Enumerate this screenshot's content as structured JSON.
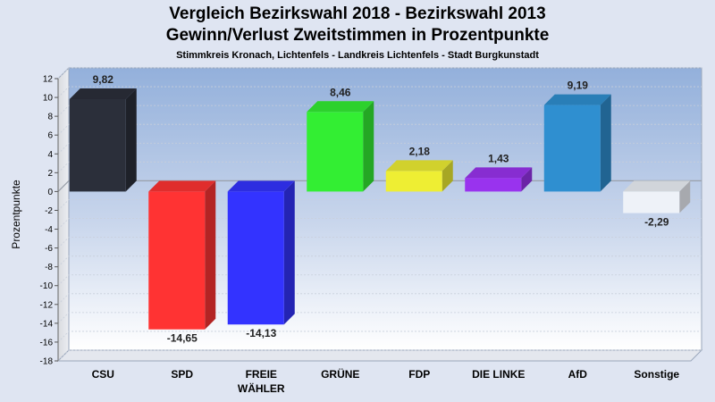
{
  "chart_data": {
    "type": "bar",
    "title": "Vergleich Bezirkswahl 2018 - Bezirkswahl 2013",
    "subtitle": "Gewinn/Verlust Zweitstimmen in Prozentpunkte",
    "subsubtitle": "Stimmkreis Kronach, Lichtenfels - Landkreis Lichtenfels - Stadt Burgkunstadt",
    "ylabel": "Prozentpunkte",
    "xlabel": "",
    "ylim": [
      -18,
      12
    ],
    "yticks": [
      "12",
      "10",
      "8",
      "6",
      "4",
      "2",
      "0",
      "-2",
      "-4",
      "-6",
      "-8",
      "-10",
      "-12",
      "-14",
      "-16",
      "-18"
    ],
    "categories": [
      {
        "line1": "CSU",
        "line2": ""
      },
      {
        "line1": "SPD",
        "line2": ""
      },
      {
        "line1": "FREIE",
        "line2": "WÄHLER"
      },
      {
        "line1": "GRÜNE",
        "line2": ""
      },
      {
        "line1": "FDP",
        "line2": ""
      },
      {
        "line1": "DIE LINKE",
        "line2": ""
      },
      {
        "line1": "AfD",
        "line2": ""
      },
      {
        "line1": "Sonstige",
        "line2": ""
      }
    ],
    "values": [
      9.82,
      -14.65,
      -14.13,
      8.46,
      2.18,
      1.43,
      9.19,
      -2.29
    ],
    "value_labels": [
      "9,82",
      "-14,65",
      "-14,13",
      "8,46",
      "2,18",
      "1,43",
      "9,19",
      "-2,29"
    ],
    "colors": [
      "#2b2f3a",
      "#ff3333",
      "#3333ff",
      "#33ee33",
      "#eeee33",
      "#9933ee",
      "#2f8fd0",
      "#eef2f8"
    ],
    "grid": true,
    "legend": "none"
  }
}
